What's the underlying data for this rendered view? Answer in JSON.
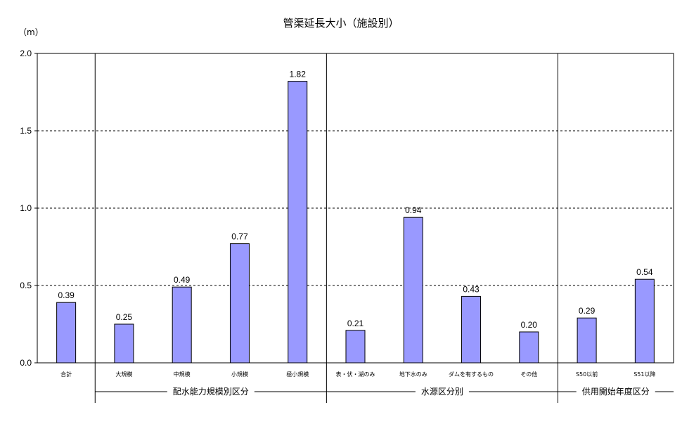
{
  "chart_data": {
    "type": "bar",
    "title": "管渠延長大小（施設別）",
    "unit_label": "（m）",
    "ylim": [
      0,
      2.0
    ],
    "yticks": [
      "0.0",
      "0.5",
      "1.0",
      "1.5",
      "2.0"
    ],
    "ytick_values": [
      0,
      0.5,
      1.0,
      1.5,
      2.0
    ],
    "grid": "dashed horizontal",
    "bar_color": "#9999ff",
    "categories": [
      "合計",
      "大規模",
      "中規模",
      "小規模",
      "極小規模",
      "表・伏・湖のみ",
      "地下水のみ",
      "ダムを有するもの",
      "その他",
      "S50以前",
      "S51以降"
    ],
    "values": [
      0.39,
      0.25,
      0.49,
      0.77,
      1.82,
      0.21,
      0.94,
      0.43,
      0.2,
      0.29,
      0.54
    ],
    "value_labels": [
      "0.39",
      "0.25",
      "0.49",
      "0.77",
      "1.82",
      "0.21",
      "0.94",
      "0.43",
      "0.20",
      "0.29",
      "0.54"
    ],
    "groups": [
      {
        "name": "配水能力規模別区分",
        "start": 1,
        "end": 4
      },
      {
        "name": "水源区分別",
        "start": 5,
        "end": 8
      },
      {
        "name": "供用開始年度区分",
        "start": 9,
        "end": 10
      }
    ]
  }
}
